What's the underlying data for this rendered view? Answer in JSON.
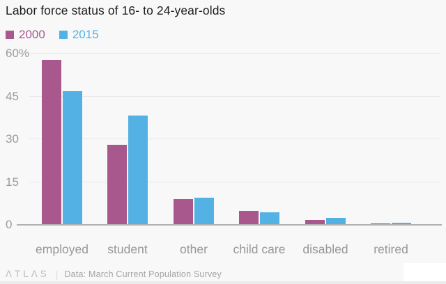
{
  "header": {
    "title": "Labor force status of 16- to 24-year-olds"
  },
  "legend": [
    {
      "label": "2000",
      "color": "#a9588e"
    },
    {
      "label": "2015",
      "color": "#54b1e4"
    }
  ],
  "chart_data": {
    "type": "bar",
    "title": "Labor force status of 16- to 24-year-olds",
    "categories": [
      "employed",
      "student",
      "other",
      "child care",
      "disabled",
      "retired"
    ],
    "series": [
      {
        "name": "2000",
        "color": "#a9588e",
        "values": [
          57.5,
          27.8,
          8.9,
          4.7,
          1.5,
          0.2
        ]
      },
      {
        "name": "2015",
        "color": "#54b1e4",
        "values": [
          46.5,
          38.0,
          9.3,
          4.1,
          2.3,
          0.5
        ]
      }
    ],
    "xlabel": "",
    "ylabel": "",
    "ylim": [
      0,
      60
    ],
    "yticks": [
      0,
      15,
      30,
      45,
      60
    ],
    "ytick_labels": [
      "0",
      "15",
      "30",
      "45",
      "60%"
    ],
    "grid": true,
    "legend_position": "top-left"
  },
  "footer": {
    "logo": "ΛTLΛS",
    "divider": "|",
    "source": "Data: March Current Population Survey"
  }
}
